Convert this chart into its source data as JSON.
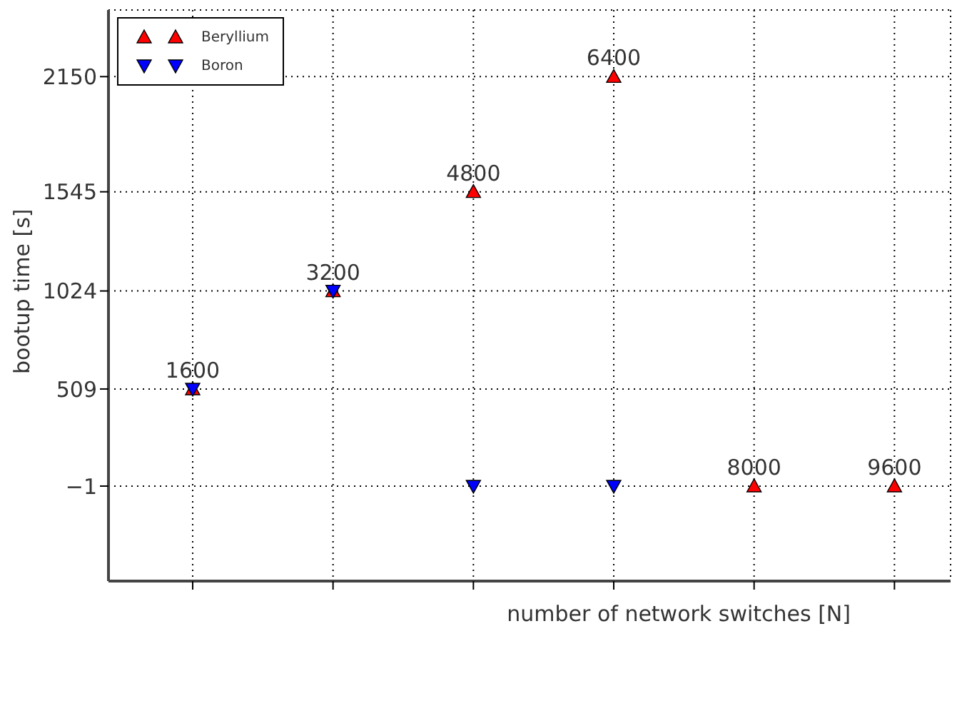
{
  "chart_data": {
    "type": "scatter",
    "xlabel": "number of network switches [N]",
    "ylabel": "bootup time [s]",
    "categories": [
      null,
      null,
      null,
      null,
      null,
      null
    ],
    "ylim": [
      -500,
      2500
    ],
    "yticks": [
      {
        "value": -1,
        "label": "−1"
      },
      509,
      1024,
      1545,
      2150
    ],
    "grid": true,
    "legend": "top left",
    "series": [
      {
        "name": "Beryllium",
        "color": "#ff0000",
        "marker": "triangle",
        "values": [
          509,
          1024,
          1545,
          2150,
          -1,
          -1
        ]
      },
      {
        "name": "Boron",
        "color": "#0000ff",
        "marker": "triangle_down",
        "values": [
          509,
          1024,
          -1,
          -1,
          null,
          null
        ]
      }
    ],
    "annotations": [
      {
        "text": "1600",
        "y": 509
      },
      {
        "text": "3200",
        "y": 1024
      },
      {
        "text": "4800",
        "y": 1545
      },
      {
        "text": "6400",
        "y": 2150
      },
      {
        "text": "8000",
        "y": -1
      },
      {
        "text": "9600",
        "y": -1
      }
    ]
  }
}
